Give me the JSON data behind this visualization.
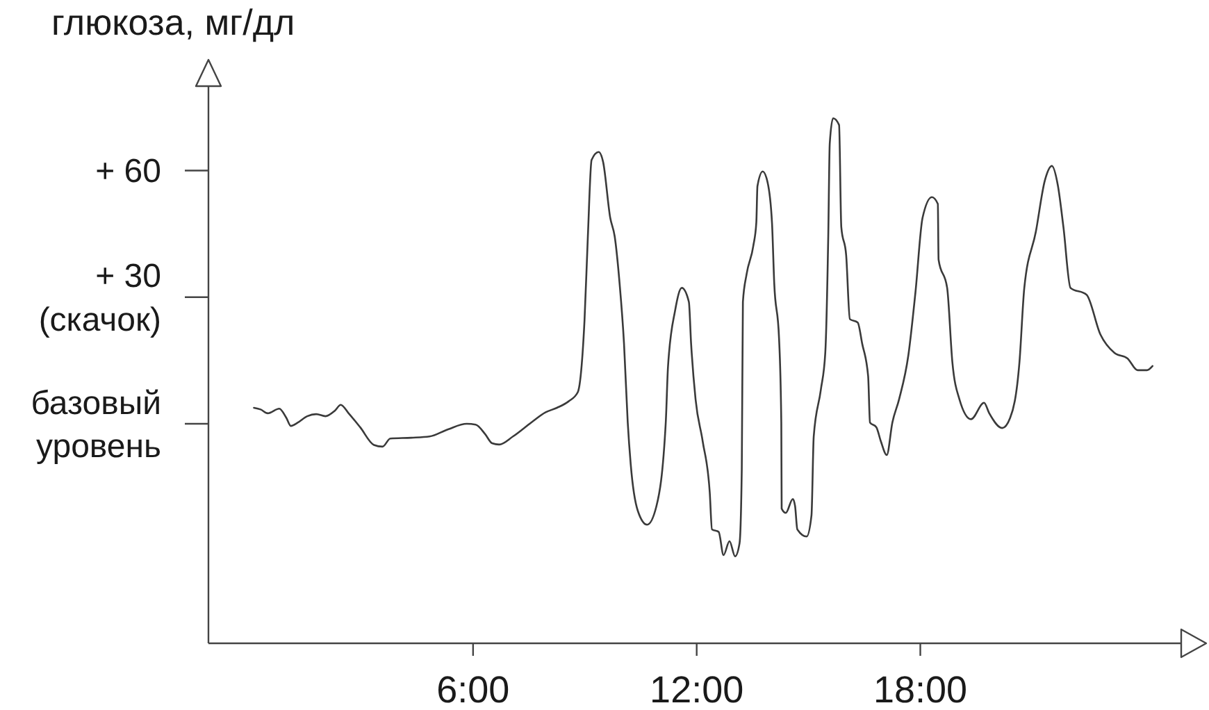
{
  "chart_data": {
    "type": "line",
    "ylabel": "глюкоза, мг/дл",
    "x": [
      0.12,
      0.3,
      0.49,
      0.8,
      0.99,
      1.11,
      1.3,
      1.55,
      1.79,
      2.04,
      2.29,
      2.45,
      2.66,
      2.97,
      3.34,
      3.57,
      3.78,
      4.34,
      4.83,
      5.33,
      5.83,
      6.07,
      6.32,
      6.51,
      6.7,
      7.07,
      7.56,
      7.94,
      8.25,
      8.56,
      8.81,
      8.93,
      8.99,
      9.08,
      9.18,
      9.37,
      9.49,
      9.68,
      9.8,
      9.93,
      10.05,
      10.15,
      10.23,
      10.42,
      10.67,
      10.92,
      11.17,
      11.23,
      11.42,
      11.6,
      11.79,
      11.85,
      11.97,
      12.16,
      12.35,
      12.41,
      12.59,
      12.72,
      12.88,
      13.03,
      13.15,
      13.21,
      13.24,
      13.34,
      13.52,
      13.6,
      13.63,
      13.77,
      13.9,
      14.02,
      14.08,
      14.21,
      14.27,
      14.28,
      14.39,
      14.58,
      14.64,
      14.7,
      14.95,
      15.08,
      15.14,
      15.33,
      15.45,
      15.53,
      15.57,
      15.66,
      15.82,
      15.88,
      16.01,
      16.11,
      16.32,
      16.44,
      16.6,
      16.65,
      16.82,
      16.94,
      17.1,
      17.25,
      17.43,
      17.68,
      17.87,
      18.06,
      18.31,
      18.47,
      18.49,
      18.72,
      18.86,
      19.05,
      19.36,
      19.71,
      19.85,
      20.2,
      20.41,
      20.66,
      20.79,
      21.1,
      21.34,
      21.53,
      21.69,
      21.84,
      22.03,
      22.46,
      22.83,
      23.21,
      23.56,
      23.83,
      24.08,
      24.23
    ],
    "series": [
      {
        "color": "#3a3a3a",
        "values": [
          3.8,
          3.4,
          2.5,
          3.6,
          1.4,
          -0.5,
          0.3,
          1.8,
          2.3,
          1.8,
          3.1,
          4.5,
          2.5,
          -0.8,
          -5.0,
          -5.4,
          -3.5,
          -3.3,
          -3.0,
          -1.3,
          0,
          -0.2,
          -2.4,
          -4.6,
          -4.9,
          -3.0,
          0.3,
          2.7,
          3.8,
          5.3,
          7.5,
          15.7,
          24.5,
          44.4,
          62.5,
          64.4,
          62.0,
          48.8,
          44.4,
          33.4,
          19.0,
          0.3,
          -9.6,
          -20.6,
          -23.9,
          -19.5,
          0.3,
          13.5,
          26.8,
          32.2,
          28.9,
          19.0,
          5.8,
          -4.1,
          -16.2,
          -25.0,
          -25.6,
          -31.1,
          -27.8,
          -31.4,
          -28.3,
          -10.7,
          28.9,
          35.5,
          42.2,
          47.7,
          56.3,
          59.8,
          57.3,
          47.7,
          33.4,
          20.2,
          0.3,
          -20.1,
          -21.1,
          -17.8,
          -19.5,
          -25.0,
          -26.7,
          -21.7,
          -3.0,
          8.0,
          16.8,
          44.4,
          66.4,
          72.4,
          70.8,
          46.6,
          40.0,
          24.8,
          24.0,
          19.0,
          11.3,
          0.3,
          -0.8,
          -4.1,
          -7.4,
          0.3,
          5.8,
          16.3,
          31.2,
          48.8,
          53.7,
          52.1,
          38.9,
          32.2,
          14.6,
          5.8,
          1.1,
          5.0,
          2.5,
          -1.0,
          1.4,
          14.6,
          32.2,
          45.5,
          57.6,
          61.1,
          56.5,
          46.6,
          32.2,
          30.6,
          21.2,
          16.8,
          15.5,
          12.7,
          12.7,
          13.7
        ]
      }
    ],
    "xlim": [
      -1.1,
      25
    ],
    "ylim": [
      -52,
      80
    ],
    "xticks": [
      {
        "value": 6,
        "label": "6:00"
      },
      {
        "value": 12,
        "label": "12:00"
      },
      {
        "value": 18,
        "label": "18:00"
      }
    ],
    "yticks": [
      {
        "value": 0,
        "label": "базовый\nуровень"
      },
      {
        "value": 30,
        "label": "+ 30\n(скачок)"
      },
      {
        "value": 60,
        "label": "+ 60"
      }
    ]
  }
}
